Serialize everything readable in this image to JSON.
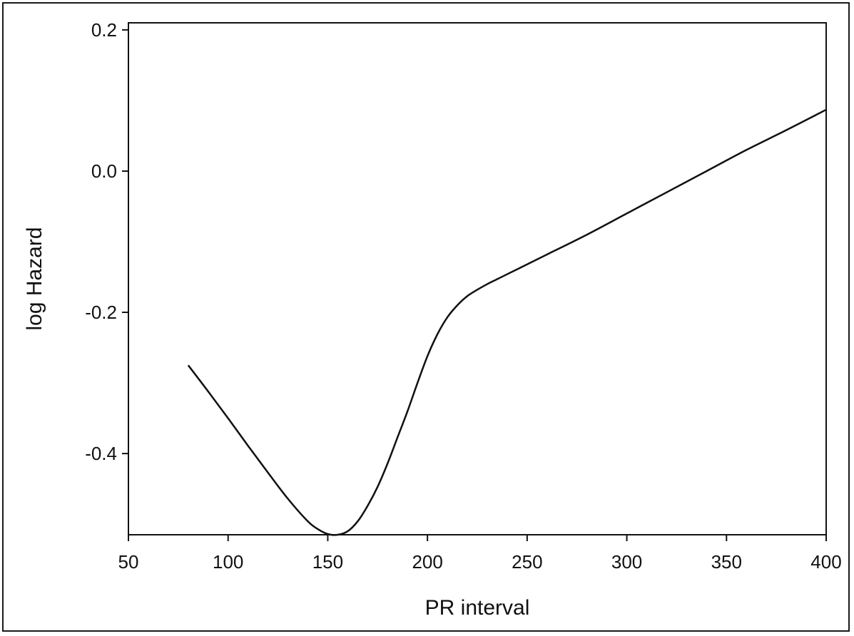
{
  "chart_data": {
    "type": "line",
    "xlabel": "PR interval",
    "ylabel": "log Hazard",
    "xlim": [
      50,
      400
    ],
    "ylim": [
      -0.515,
      0.21
    ],
    "xticks": [
      50,
      100,
      150,
      200,
      250,
      300,
      350,
      400
    ],
    "xtick_labels": [
      "50",
      "100",
      "150",
      "200",
      "250",
      "300",
      "350",
      "400"
    ],
    "yticks": [
      -0.4,
      -0.2,
      0.0,
      0.2
    ],
    "ytick_labels": [
      "-0.4",
      "-0.2",
      "0.0",
      "0.2"
    ],
    "grid": false,
    "legend": false,
    "line_color": "#111111",
    "series": [
      {
        "x": [
          80,
          90,
          100,
          110,
          120,
          130,
          140,
          145,
          150,
          155,
          160,
          165,
          170,
          175,
          180,
          185,
          190,
          195,
          200,
          205,
          210,
          215,
          220,
          225,
          230,
          235,
          240,
          250,
          260,
          280,
          300,
          320,
          340,
          360,
          380,
          400
        ],
        "y": [
          -0.275,
          -0.312,
          -0.35,
          -0.389,
          -0.427,
          -0.464,
          -0.496,
          -0.507,
          -0.514,
          -0.515,
          -0.51,
          -0.496,
          -0.474,
          -0.447,
          -0.414,
          -0.377,
          -0.34,
          -0.3,
          -0.262,
          -0.231,
          -0.207,
          -0.19,
          -0.177,
          -0.168,
          -0.16,
          -0.153,
          -0.146,
          -0.132,
          -0.118,
          -0.09,
          -0.06,
          -0.03,
          0.0,
          0.03,
          0.058,
          0.087
        ]
      }
    ]
  }
}
